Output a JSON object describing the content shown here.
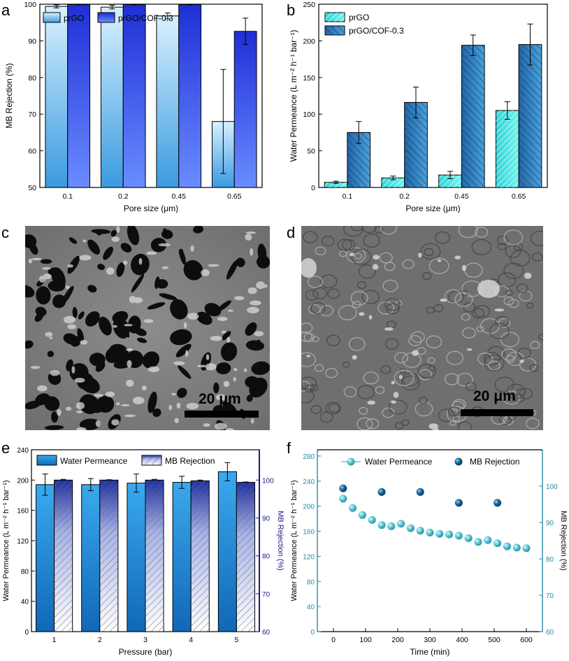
{
  "panels": {
    "a": "a",
    "b": "b",
    "c": "c",
    "d": "d",
    "e": "e",
    "f": "f"
  },
  "colors": {
    "light_blue": "#b9e2f8",
    "mid_blue": "#3aa3e0",
    "royal": "#2b3fe0",
    "cyan": "#3fe6e6",
    "steel": "#2b73b5",
    "teal": "#4fc1cf",
    "navy_point": "#0f5f8f"
  },
  "chart_data": [
    {
      "id": "a",
      "type": "bar",
      "categories": [
        "0.1",
        "0.2",
        "0.45",
        "0.65"
      ],
      "series": [
        {
          "name": "prGO",
          "values": [
            99.4,
            99.2,
            96.8,
            68.0
          ],
          "errors": [
            0.4,
            0.5,
            0.8,
            14.2
          ]
        },
        {
          "name": "prGO/COF-0.3",
          "values": [
            99.9,
            99.9,
            99.9,
            92.6
          ],
          "errors": [
            0.1,
            0.1,
            0.1,
            3.6
          ]
        }
      ],
      "xlabel": "Pore size (μm)",
      "ylabel": "MB Rejection (%)",
      "ylim": [
        50,
        100
      ],
      "yticks": [
        "50",
        "60",
        "70",
        "80",
        "90",
        "100"
      ],
      "legend": "top-left"
    },
    {
      "id": "b",
      "type": "bar",
      "categories": [
        "0.1",
        "0.2",
        "0.45",
        "0.65"
      ],
      "series": [
        {
          "name": "prGO",
          "values": [
            7,
            13,
            17,
            105
          ],
          "errors": [
            1.5,
            2.5,
            5,
            12
          ]
        },
        {
          "name": "prGO/COF-0.3",
          "values": [
            75,
            116,
            194,
            195
          ],
          "errors": [
            15,
            21,
            14,
            28
          ]
        }
      ],
      "xlabel": "Pore size (μm)",
      "ylabel": "Water Permeance (L m⁻² h⁻¹ bar⁻¹)",
      "ylim": [
        0,
        250
      ],
      "yticks": [
        "0",
        "50",
        "100",
        "150",
        "200",
        "250"
      ],
      "legend": "top-left"
    },
    {
      "id": "e",
      "type": "bar",
      "categories": [
        "1",
        "2",
        "3",
        "4",
        "5"
      ],
      "series": [
        {
          "name": "Water Permeance",
          "axis": "left",
          "values": [
            194,
            194,
            196,
            197,
            211
          ],
          "errors": [
            14,
            8,
            12,
            8,
            12
          ]
        },
        {
          "name": "MB Rejection",
          "axis": "right",
          "values": [
            100,
            100,
            100,
            99.8,
            99.4
          ],
          "errors": [
            0.2,
            0.1,
            0.2,
            0.2,
            0.1
          ]
        }
      ],
      "xlabel": "Pressure (bar)",
      "ylabel": "Water Permeance (L m⁻² h⁻¹ bar⁻¹)",
      "y2label": "MB Rejection (%)",
      "ylim": [
        0,
        240
      ],
      "y2lim": [
        60,
        108
      ],
      "yticks": [
        "0",
        "40",
        "80",
        "120",
        "160",
        "200",
        "240"
      ],
      "y2ticks": [
        "60",
        "70",
        "80",
        "90",
        "100"
      ],
      "legend": "top"
    },
    {
      "id": "f",
      "type": "scatter",
      "series": [
        {
          "name": "Water Permeance",
          "axis": "left",
          "x": [
            30,
            60,
            90,
            120,
            150,
            180,
            210,
            240,
            270,
            300,
            330,
            360,
            390,
            420,
            450,
            480,
            510,
            540,
            570,
            600
          ],
          "y": [
            212,
            197,
            186,
            178,
            170,
            168,
            172,
            165,
            161,
            158,
            156,
            155,
            153,
            149,
            143,
            146,
            141,
            136,
            134,
            133
          ]
        },
        {
          "name": "MB Rejection",
          "axis": "right",
          "x": [
            30,
            150,
            270,
            390,
            510
          ],
          "y": [
            99.4,
            98.4,
            98.4,
            95.4,
            95.4
          ]
        }
      ],
      "xlabel": "Time (min)",
      "ylabel": "Water Permeance (L m⁻² h⁻¹ bar⁻¹)",
      "y2label": "MB Rejection (%)",
      "xlim": [
        -50,
        650
      ],
      "ylim": [
        0,
        290
      ],
      "y2lim": [
        60,
        110
      ],
      "xticks": [
        "0",
        "100",
        "200",
        "300",
        "400",
        "500",
        "600"
      ],
      "yticks": [
        "0",
        "40",
        "80",
        "120",
        "160",
        "200",
        "240",
        "280"
      ],
      "y2ticks": [
        "60",
        "70",
        "80",
        "90",
        "100"
      ],
      "legend": "top"
    }
  ],
  "images": {
    "c": {
      "scale_label": "20 μm"
    },
    "d": {
      "scale_label": "20 μm"
    }
  }
}
